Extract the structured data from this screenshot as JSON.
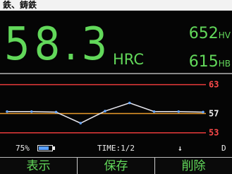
{
  "header": {
    "material": "鉄、鋳鉄"
  },
  "reading": {
    "value": "58.3",
    "unit": "HRC"
  },
  "conversions": [
    {
      "value": "652",
      "unit": "HV"
    },
    {
      "value": "615",
      "unit": "HB"
    }
  ],
  "chart_data": {
    "type": "line",
    "values": [
      57.4,
      57.4,
      57.3,
      55.0,
      57.5,
      59.2,
      57.4,
      57.4,
      57.3
    ],
    "color": "#e8e8f0",
    "ylim": [
      51.2,
      65
    ],
    "yticks": [
      53,
      57,
      63
    ],
    "tick_colors": [
      "#e83a3a",
      "#e89a2a",
      "#e83a3a"
    ],
    "tick_label_colors": [
      "#ff4a4a",
      "#f0f0f0",
      "#ff4a4a"
    ]
  },
  "status": {
    "battery": "75%",
    "time": "TIME:1/2",
    "arrow": "↓",
    "mode": "D"
  },
  "buttons": [
    "表示",
    "保存",
    "削除"
  ]
}
